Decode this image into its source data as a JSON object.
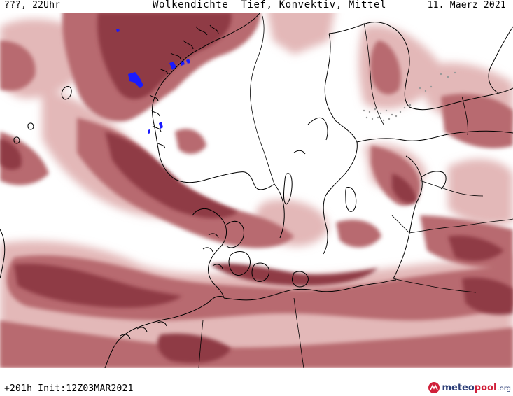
{
  "header": {
    "left": "???, 22Uhr",
    "title": "Wolkendichte  Tief, Konvektiv, Mittel",
    "date": "11. Maerz 2021"
  },
  "footer": {
    "run": "+201h Init:12Z03MAR2021",
    "brand_main": "meteo",
    "brand_accent": "pool",
    "brand_tld": ".org"
  },
  "legend_colors": {
    "cloud_dark": "#8e3c44",
    "cloud_medium": "#b8646a",
    "cloud_light": "#e0b3b3",
    "precip_blue": "#1a1aff",
    "coastline": "#000000"
  }
}
